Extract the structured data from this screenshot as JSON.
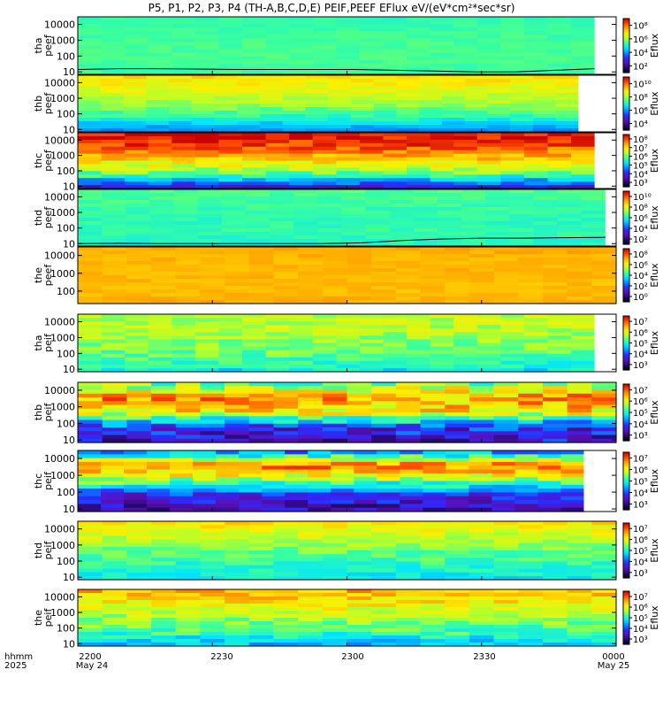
{
  "title": "P5, P1, P2, P3, P4 (TH-A,B,C,D,E) PEIF,PEEF EFlux eV/(eV*cm²*sec*sr)",
  "colors": {
    "spectrogram_palette": [
      "#000000",
      "#2a0a7a",
      "#5a10b8",
      "#2b2bff",
      "#0090ff",
      "#00e5ff",
      "#3cff9a",
      "#b5ff2a",
      "#ffee00",
      "#ffa800",
      "#ff4500",
      "#c80000"
    ],
    "white_stripe": "#ffffff",
    "flux_line": "#000000"
  },
  "x_axis": {
    "row_label_1": "hhmm",
    "row_label_2": "2025",
    "ticks": [
      {
        "value": "2200",
        "sub": "May 24"
      },
      {
        "value": "2230",
        "sub": ""
      },
      {
        "value": "2300",
        "sub": ""
      },
      {
        "value": "2330",
        "sub": ""
      },
      {
        "value": "0000",
        "sub": "May 25"
      }
    ]
  },
  "chart_data": [
    {
      "type": "heatmap",
      "probe": "tha",
      "ylabel": "tha\npeef",
      "y_ticks": [
        "10000",
        "1000",
        "100",
        "10"
      ],
      "colorbar_label": "Eflux",
      "colorbar_ticks": [
        "10⁸",
        "10⁶",
        "10⁴",
        "10²"
      ],
      "color_range_log": [
        1,
        9
      ],
      "y_range_ev": [
        7,
        30000
      ],
      "x_range": [
        "2200",
        "0000"
      ],
      "data_end_fraction": 0.96,
      "energy_profile_log": [
        5.2,
        5.3,
        5.4,
        5.4,
        5.3
      ],
      "time_variation": 0.15,
      "line_log": [
        1.15,
        1.2,
        1.2,
        1.18,
        1.15,
        1.15,
        1.15,
        1.15,
        1.1,
        1.05,
        1.0,
        1.0,
        1.1,
        1.2
      ]
    },
    {
      "type": "heatmap",
      "probe": "thb",
      "ylabel": "thb\npeef",
      "y_ticks": [
        "10000",
        "1000",
        "100",
        "10"
      ],
      "colorbar_label": "Eflux",
      "colorbar_ticks": [
        "10¹⁰",
        "10⁸",
        "10⁶",
        "10⁴"
      ],
      "color_range_log": [
        2,
        11
      ],
      "y_range_ev": [
        7,
        30000
      ],
      "x_range": [
        "2200",
        "0000"
      ],
      "data_end_fraction": 0.93,
      "energy_profile_log": [
        8.7,
        8.2,
        7.6,
        6.6,
        5.0
      ],
      "time_variation": 0.35
    },
    {
      "type": "heatmap",
      "probe": "thc",
      "ylabel": "thc\npeef",
      "y_ticks": [
        "10000",
        "1000",
        "100",
        "10"
      ],
      "colorbar_label": "Eflux",
      "colorbar_ticks": [
        "10⁸",
        "10⁷",
        "10⁶",
        "10⁵",
        "10⁴",
        "10³"
      ],
      "color_range_log": [
        2,
        8.5
      ],
      "y_range_ev": [
        7,
        30000
      ],
      "x_range": [
        "2200",
        "0000"
      ],
      "data_end_fraction": 0.96,
      "energy_profile_log": [
        8.4,
        7.9,
        6.9,
        5.6,
        3.2
      ],
      "time_variation": 0.45
    },
    {
      "type": "heatmap",
      "probe": "thd",
      "ylabel": "thd\npeef",
      "y_ticks": [
        "10000",
        "1000",
        "100",
        "10"
      ],
      "colorbar_label": "Eflux",
      "colorbar_ticks": [
        "10¹⁰",
        "10⁸",
        "10⁶",
        "10⁴",
        "10²"
      ],
      "color_range_log": [
        1,
        11
      ],
      "y_range_ev": [
        7,
        30000
      ],
      "x_range": [
        "2200",
        "0000"
      ],
      "data_end_fraction": 0.98,
      "energy_profile_log": [
        6.6,
        6.4,
        6.2,
        6.3,
        6.0
      ],
      "time_variation": 0.25,
      "line_log": [
        1.0,
        1.02,
        1.0,
        1.0,
        1.0,
        1.0,
        1.0,
        1.05,
        1.2,
        1.3,
        1.35,
        1.35,
        1.38,
        1.4
      ]
    },
    {
      "type": "heatmap",
      "probe": "the",
      "ylabel": "the\npeef",
      "y_ticks": [
        "10000",
        "1000",
        "100"
      ],
      "colorbar_label": "Eflux",
      "colorbar_ticks": [
        "10⁸",
        "10⁶",
        "10⁴",
        "10²",
        "10⁰"
      ],
      "color_range_log": [
        0,
        9
      ],
      "y_range_ev": [
        20,
        30000
      ],
      "x_range": [
        "2200",
        "0000"
      ],
      "data_end_fraction": 1.0,
      "energy_profile_log": [
        7.3,
        7.2,
        7.2,
        7.1,
        7.3
      ],
      "time_variation": 0.2
    },
    {
      "type": "heatmap",
      "probe": "tha",
      "ylabel": "tha\npeif",
      "y_ticks": [
        "10000",
        "1000",
        "100",
        "10"
      ],
      "colorbar_label": "Eflux",
      "colorbar_ticks": [
        "10⁷",
        "10⁶",
        "10⁵",
        "10⁴",
        "10³"
      ],
      "color_range_log": [
        2.7,
        7.5
      ],
      "y_range_ev": [
        7,
        30000
      ],
      "x_range": [
        "2200",
        "0000"
      ],
      "data_end_fraction": 0.96,
      "energy_profile_log": [
        5.8,
        5.8,
        5.6,
        5.4,
        4.9
      ],
      "time_variation": 0.3
    },
    {
      "type": "heatmap",
      "probe": "thb",
      "ylabel": "thb\npeif",
      "y_ticks": [
        "10000",
        "1000",
        "100",
        "10"
      ],
      "colorbar_label": "Eflux",
      "colorbar_ticks": [
        "10⁷",
        "10⁶",
        "10⁵",
        "10⁴",
        "10³"
      ],
      "color_range_log": [
        2.7,
        7.5
      ],
      "y_range_ev": [
        7,
        30000
      ],
      "x_range": [
        "2200",
        "0000"
      ],
      "data_end_fraction": 1.0,
      "energy_profile_log": [
        5.4,
        6.7,
        6.2,
        3.9,
        3.6
      ],
      "time_variation": 0.6
    },
    {
      "type": "heatmap",
      "probe": "thc",
      "ylabel": "thc\npeif",
      "y_ticks": [
        "10000",
        "1000",
        "100",
        "10"
      ],
      "colorbar_label": "Eflux",
      "colorbar_ticks": [
        "10⁷",
        "10⁶",
        "10⁵",
        "10⁴",
        "10³"
      ],
      "color_range_log": [
        2.7,
        7.5
      ],
      "y_range_ev": [
        7,
        30000
      ],
      "x_range": [
        "2200",
        "0000"
      ],
      "data_end_fraction": 0.94,
      "energy_profile_log": [
        4.2,
        6.9,
        5.5,
        3.8,
        3.4
      ],
      "time_variation": 0.5
    },
    {
      "type": "heatmap",
      "probe": "thd",
      "ylabel": "thd\npeif",
      "y_ticks": [
        "10000",
        "1000",
        "100",
        "10"
      ],
      "colorbar_label": "Eflux",
      "colorbar_ticks": [
        "10⁷",
        "10⁶",
        "10⁵",
        "10⁴",
        "10³"
      ],
      "color_range_log": [
        2.7,
        7.5
      ],
      "y_range_ev": [
        7,
        30000
      ],
      "x_range": [
        "2200",
        "0000"
      ],
      "data_end_fraction": 1.0,
      "energy_profile_log": [
        6.3,
        5.9,
        5.5,
        5.2,
        4.9
      ],
      "time_variation": 0.25
    },
    {
      "type": "heatmap",
      "probe": "the",
      "ylabel": "the\npeif",
      "y_ticks": [
        "10000",
        "1000",
        "100",
        "10"
      ],
      "colorbar_label": "Eflux",
      "colorbar_ticks": [
        "10⁷",
        "10⁶",
        "10⁵",
        "10⁴",
        "10³"
      ],
      "color_range_log": [
        2.7,
        7.5
      ],
      "y_range_ev": [
        7,
        30000
      ],
      "x_range": [
        "2200",
        "0000"
      ],
      "data_end_fraction": 1.0,
      "energy_profile_log": [
        6.6,
        6.2,
        5.7,
        5.3,
        4.6
      ],
      "time_variation": 0.35
    }
  ]
}
